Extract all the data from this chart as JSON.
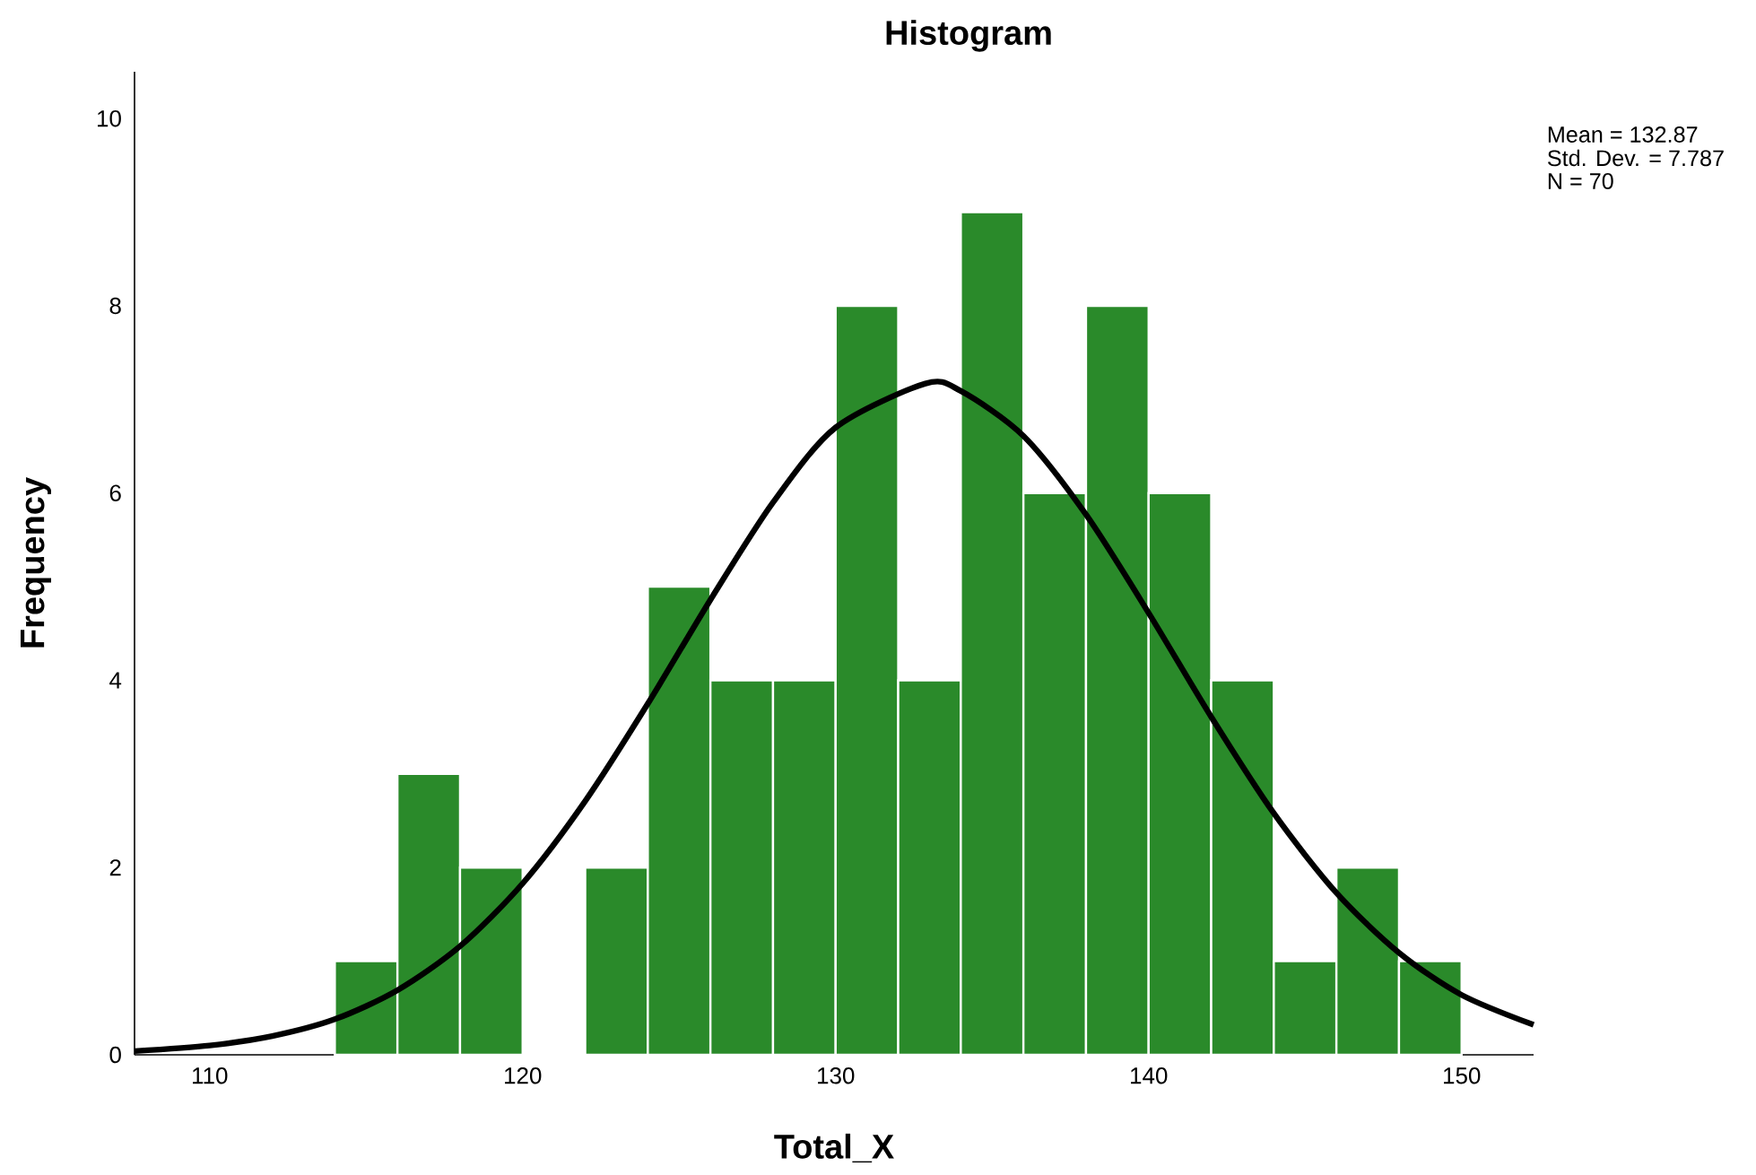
{
  "chart_data": {
    "type": "histogram",
    "title": "Histogram",
    "xlabel": "Total_X",
    "ylabel": "Frequency",
    "bins": [
      114,
      116,
      118,
      120,
      122,
      124,
      126,
      128,
      130,
      132,
      134,
      136,
      138,
      140,
      142,
      144,
      146,
      148,
      150
    ],
    "values": [
      1,
      3,
      2,
      0,
      2,
      5,
      4,
      4,
      8,
      4,
      9,
      6,
      8,
      6,
      4,
      1,
      2,
      1
    ],
    "color": "#2a8a2a",
    "series": [
      {
        "type": "line",
        "color": "#000000",
        "x": [
          107.6,
          110,
          112,
          114,
          116,
          118,
          120,
          122,
          124,
          126,
          128,
          130,
          132.87,
          134,
          136,
          138,
          140,
          142,
          144,
          146,
          148,
          150,
          152.3
        ],
        "values": [
          0.04,
          0.1,
          0.2,
          0.38,
          0.69,
          1.16,
          1.83,
          2.71,
          3.75,
          4.86,
          5.9,
          6.7,
          7.17,
          7.09,
          6.61,
          5.77,
          4.72,
          3.61,
          2.58,
          1.73,
          1.09,
          0.64,
          0.32
        ]
      }
    ],
    "xlim": [
      107.6,
      152.3
    ],
    "ylim": [
      0,
      10.5
    ],
    "xticks": [
      110,
      120,
      130,
      140,
      150
    ],
    "yticks": [
      0,
      2,
      4,
      6,
      8,
      10
    ],
    "grid": false,
    "annotations": [
      "Mean = 132.87",
      "Std. Dev. = 7.787",
      "N = 70"
    ]
  }
}
